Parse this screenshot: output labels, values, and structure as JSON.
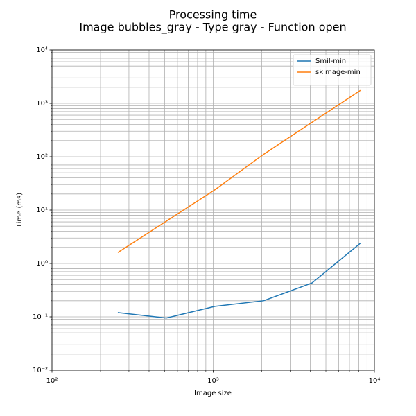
{
  "chart_data": {
    "type": "line",
    "title": "Processing time",
    "subtitle": "Image bubbles_gray - Type gray - Function open",
    "x_label": "Image size",
    "y_label": "Time (ms)",
    "x": [
      256,
      512,
      1024,
      2048,
      4096,
      8192
    ],
    "series": [
      {
        "name": "Smil-min",
        "color": "#1f77b4",
        "values": [
          0.12,
          0.095,
          0.157,
          0.2,
          0.43,
          2.4
        ]
      },
      {
        "name": "skImage-min",
        "color": "#ff7f0e",
        "values": [
          1.6,
          6.2,
          24,
          110,
          440,
          1750
        ]
      }
    ],
    "xscale": "log",
    "yscale": "log",
    "xlim": [
      100,
      10000
    ],
    "ylim": [
      0.01,
      10000
    ],
    "xticks": [
      {
        "value": 100,
        "label": "10²"
      },
      {
        "value": 1000,
        "label": "10³"
      },
      {
        "value": 10000,
        "label": "10⁴"
      }
    ],
    "yticks": [
      {
        "value": 0.01,
        "label": "10⁻²"
      },
      {
        "value": 0.1,
        "label": "10⁻¹"
      },
      {
        "value": 1,
        "label": "10⁰"
      },
      {
        "value": 10,
        "label": "10¹"
      },
      {
        "value": 100,
        "label": "10²"
      },
      {
        "value": 1000,
        "label": "10³"
      },
      {
        "value": 10000,
        "label": "10⁴"
      }
    ],
    "xminorticks": [
      200,
      300,
      400,
      500,
      600,
      700,
      800,
      900,
      2000,
      3000,
      4000,
      5000,
      6000,
      7000,
      8000,
      9000
    ],
    "yminorticks": [
      0.02,
      0.03,
      0.04,
      0.05,
      0.06,
      0.07,
      0.08,
      0.09,
      0.2,
      0.3,
      0.4,
      0.5,
      0.6,
      0.7,
      0.8,
      0.9,
      2,
      3,
      4,
      5,
      6,
      7,
      8,
      9,
      20,
      30,
      40,
      50,
      60,
      70,
      80,
      90,
      200,
      300,
      400,
      500,
      600,
      700,
      800,
      900,
      2000,
      3000,
      4000,
      5000,
      6000,
      7000,
      8000,
      9000
    ],
    "grid": true,
    "legend": "upper right"
  }
}
